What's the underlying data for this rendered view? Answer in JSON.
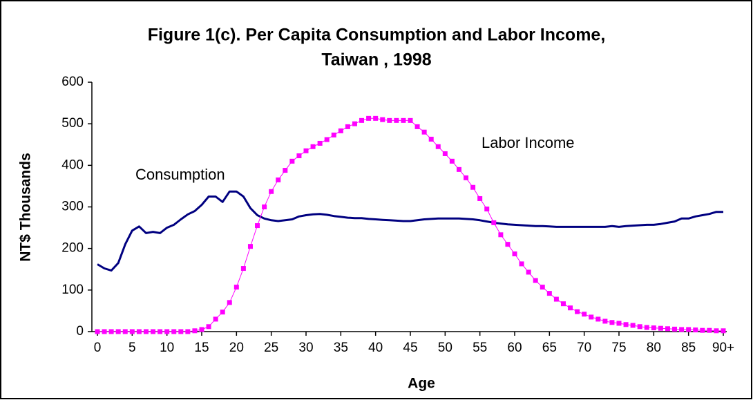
{
  "chart_data": {
    "type": "line",
    "title": [
      "Figure 1(c). Per Capita Consumption and Labor Income,",
      "Taiwan , 1998"
    ],
    "x_label": "Age",
    "y_label": "NT$ Thousands",
    "annotations": [
      "Consumption",
      "Labor Income"
    ],
    "categories": [
      "0",
      null,
      null,
      null,
      null,
      "5",
      null,
      null,
      null,
      null,
      "10",
      null,
      null,
      null,
      null,
      "15",
      null,
      null,
      null,
      null,
      "20",
      null,
      null,
      null,
      null,
      "25",
      null,
      null,
      null,
      null,
      "30",
      null,
      null,
      null,
      null,
      "35",
      null,
      null,
      null,
      null,
      "40",
      null,
      null,
      null,
      null,
      "45",
      null,
      null,
      null,
      null,
      "50",
      null,
      null,
      null,
      null,
      "55",
      null,
      null,
      null,
      null,
      "60",
      null,
      null,
      null,
      null,
      "65",
      null,
      null,
      null,
      null,
      "70",
      null,
      null,
      null,
      null,
      "75",
      null,
      null,
      null,
      null,
      "80",
      null,
      null,
      null,
      null,
      "85",
      null,
      null,
      null,
      null,
      "90+"
    ],
    "series": [
      {
        "name": "Consumption",
        "color": "#000080",
        "marker": "none",
        "values": [
          162,
          152,
          147,
          165,
          210,
          243,
          253,
          237,
          240,
          237,
          250,
          257,
          270,
          282,
          290,
          305,
          325,
          325,
          312,
          337,
          337,
          325,
          297,
          280,
          272,
          268,
          266,
          268,
          270,
          277,
          280,
          282,
          283,
          281,
          278,
          276,
          274,
          273,
          273,
          271,
          270,
          269,
          268,
          267,
          266,
          266,
          268,
          270,
          271,
          272,
          272,
          272,
          272,
          271,
          270,
          268,
          265,
          262,
          260,
          258,
          257,
          256,
          255,
          254,
          254,
          253,
          252,
          252,
          252,
          252,
          252,
          252,
          252,
          252,
          254,
          252,
          254,
          255,
          256,
          257,
          257,
          259,
          262,
          265,
          272,
          272,
          277,
          280,
          283,
          288,
          288
        ]
      },
      {
        "name": "Labor Income",
        "color": "#ff00ff",
        "marker": "square",
        "values": [
          0,
          0,
          0,
          0,
          0,
          0,
          0,
          0,
          0,
          0,
          0,
          0,
          0,
          0,
          2,
          5,
          12,
          30,
          47,
          70,
          107,
          152,
          205,
          255,
          300,
          337,
          365,
          388,
          410,
          423,
          435,
          445,
          453,
          462,
          473,
          483,
          493,
          500,
          508,
          513,
          513,
          510,
          508,
          508,
          508,
          508,
          493,
          480,
          463,
          445,
          428,
          410,
          390,
          370,
          347,
          320,
          295,
          262,
          233,
          210,
          187,
          163,
          143,
          123,
          107,
          92,
          78,
          67,
          57,
          48,
          42,
          35,
          30,
          25,
          22,
          20,
          17,
          15,
          12,
          10,
          9,
          8,
          7,
          6,
          5,
          5,
          4,
          3,
          3,
          2,
          2
        ]
      }
    ],
    "ylim": [
      0,
      600
    ],
    "yticks": [
      0,
      100,
      200,
      300,
      400,
      500,
      600
    ],
    "grid": false
  }
}
